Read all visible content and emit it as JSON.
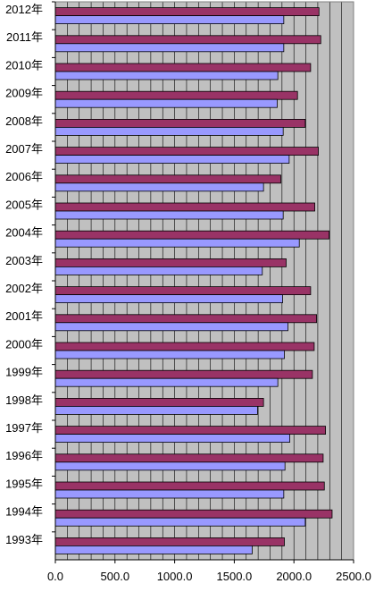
{
  "chart_data": {
    "type": "bar",
    "orientation": "horizontal",
    "categories": [
      "2012年",
      "2011年",
      "2010年",
      "2009年",
      "2008年",
      "2007年",
      "2006年",
      "2005年",
      "2004年",
      "2003年",
      "2002年",
      "2001年",
      "2000年",
      "1999年",
      "1998年",
      "1997年",
      "1996年",
      "1995年",
      "1994年",
      "1993年"
    ],
    "series": [
      {
        "color": "#993366",
        "values": [
          2210,
          2225,
          2140,
          2030,
          2095,
          2205,
          1890,
          2175,
          2295,
          1935,
          2140,
          2190,
          2170,
          2155,
          1745,
          2265,
          2245,
          2255,
          2320,
          1920
        ]
      },
      {
        "color": "#9999ff",
        "values": [
          1915,
          1915,
          1865,
          1860,
          1910,
          1960,
          1745,
          1910,
          2045,
          1735,
          1905,
          1950,
          1920,
          1865,
          1695,
          1965,
          1925,
          1915,
          2095,
          1650
        ]
      }
    ],
    "xlim": [
      0,
      2500
    ],
    "x_ticks": [
      "0.0",
      "500.0",
      "1000.0",
      "1500.0",
      "2000.0",
      "2500.0"
    ],
    "grid": true,
    "plot_background": "#c0c0c0",
    "legend": "none"
  }
}
